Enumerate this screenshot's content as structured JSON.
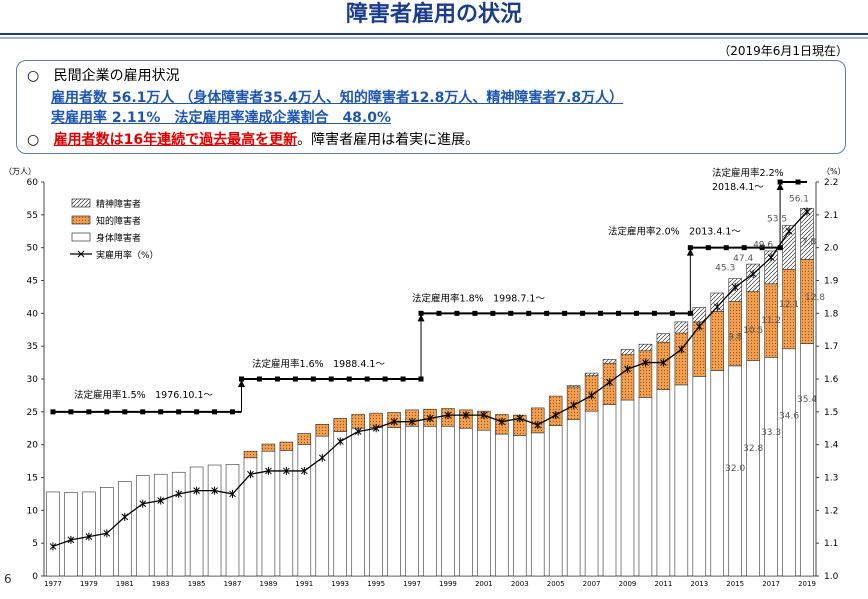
{
  "header": {
    "title": "障害者雇用の状況",
    "date_note": "（2019年6月1日現在）"
  },
  "summary": {
    "bullet": "○",
    "line1": "民間企業の雇用状況",
    "line2": "雇用者数 56.1万人 （身体障害者35.4万人、知的障害者12.8万人、精神障害者7.8万人）",
    "line3": "実雇用率 2.11%　法定雇用率達成企業割合　48.0%",
    "line4_red": "雇用者数は16年連続で過去最高を更新",
    "line4_rest": "。障害者雇用は着実に進展。"
  },
  "page_number": "6",
  "chart_data": {
    "type": "bar",
    "stacked": true,
    "ylabel_left": "（万人）",
    "ylabel_right": "（%）",
    "ylim_left": [
      0,
      60
    ],
    "ylim_right": [
      1.0,
      2.2
    ],
    "yticks_left": [
      "0",
      "5",
      "10",
      "15",
      "20",
      "25",
      "30",
      "35",
      "40",
      "45",
      "50",
      "55",
      "60"
    ],
    "yticks_right": [
      "1.0",
      "1.1",
      "1.2",
      "1.3",
      "1.4",
      "1.5",
      "1.6",
      "1.7",
      "1.8",
      "1.9",
      "2.0",
      "2.1",
      "2.2"
    ],
    "x_tick_labels": [
      "1977",
      "1979",
      "1981",
      "1983",
      "1985",
      "1987",
      "1989",
      "1991",
      "1993",
      "1995",
      "1997",
      "1999",
      "2001",
      "2003",
      "2005",
      "2007",
      "2009",
      "2011",
      "2013",
      "2015",
      "2017",
      "2019"
    ],
    "years": [
      1977,
      1978,
      1979,
      1980,
      1981,
      1982,
      1983,
      1984,
      1985,
      1986,
      1987,
      1988,
      1989,
      1990,
      1991,
      1992,
      1993,
      1994,
      1995,
      1996,
      1997,
      1998,
      1999,
      2000,
      2001,
      2002,
      2003,
      2004,
      2005,
      2006,
      2007,
      2008,
      2009,
      2010,
      2011,
      2012,
      2013,
      2014,
      2015,
      2016,
      2017,
      2018,
      2019
    ],
    "series": [
      {
        "name": "身体障害者",
        "color": "#ffffff",
        "values": [
          12.8,
          12.7,
          12.8,
          13.5,
          14.4,
          15.3,
          15.5,
          15.8,
          16.6,
          16.9,
          17.0,
          18.0,
          19.0,
          19.1,
          20.0,
          21.3,
          22.0,
          22.5,
          22.6,
          22.6,
          22.8,
          22.8,
          22.8,
          22.5,
          22.2,
          21.6,
          21.4,
          21.8,
          22.9,
          23.8,
          25.1,
          26.1,
          26.8,
          27.2,
          28.4,
          29.1,
          30.4,
          31.3,
          32.0,
          32.8,
          33.3,
          34.6,
          35.4
        ]
      },
      {
        "name": "知的障害者",
        "color": "#f0a050",
        "values": [
          0,
          0,
          0,
          0,
          0,
          0,
          0,
          0,
          0,
          0,
          0,
          1.0,
          1.1,
          1.3,
          1.7,
          1.8,
          2.0,
          2.1,
          2.2,
          2.3,
          2.5,
          2.6,
          2.7,
          2.8,
          2.9,
          3.0,
          3.1,
          3.8,
          4.5,
          5.0,
          5.4,
          6.3,
          6.9,
          7.1,
          7.2,
          7.9,
          8.3,
          9.0,
          9.8,
          10.5,
          11.2,
          12.1,
          12.8
        ]
      },
      {
        "name": "精神障害者",
        "color": "#ffffff",
        "values": [
          0,
          0,
          0,
          0,
          0,
          0,
          0,
          0,
          0,
          0,
          0,
          0,
          0,
          0,
          0,
          0,
          0,
          0,
          0,
          0,
          0,
          0,
          0,
          0,
          0,
          0,
          0,
          0,
          0,
          0.2,
          0.4,
          0.6,
          0.8,
          1.0,
          1.3,
          1.7,
          2.2,
          2.8,
          3.5,
          4.2,
          5.0,
          6.7,
          7.8
        ]
      }
    ],
    "rate_series": {
      "name": "実雇用率（%）",
      "values": [
        1.09,
        1.11,
        1.12,
        1.13,
        1.18,
        1.22,
        1.23,
        1.25,
        1.26,
        1.26,
        1.25,
        1.31,
        1.32,
        1.32,
        1.32,
        1.36,
        1.41,
        1.44,
        1.45,
        1.47,
        1.47,
        1.48,
        1.49,
        1.49,
        1.49,
        1.47,
        1.48,
        1.46,
        1.49,
        1.52,
        1.55,
        1.59,
        1.63,
        1.65,
        1.65,
        1.69,
        1.76,
        1.82,
        1.88,
        1.92,
        1.97,
        2.05,
        2.11
      ]
    },
    "statutory_rate": {
      "segments": [
        {
          "from": 1977,
          "to": 1988,
          "rate": 1.5
        },
        {
          "from": 1988,
          "to": 1998,
          "rate": 1.6
        },
        {
          "from": 1998,
          "to": 2013,
          "rate": 1.8
        },
        {
          "from": 2013,
          "to": 2018,
          "rate": 2.0
        },
        {
          "from": 2018,
          "to": 2019,
          "rate": 2.2
        }
      ],
      "labels": [
        "法定雇用率1.5%　1976.10.1～",
        "法定雇用率1.6%　1988.4.1～",
        "法定雇用率1.8%　1998.7.1～",
        "法定雇用率2.0%　2013.4.1～",
        "法定雇用率2.2%",
        "2018.4.1～"
      ]
    },
    "data_labels": [
      {
        "year": 2015,
        "text": "32.0"
      },
      {
        "year": 2016,
        "text": "32.8"
      },
      {
        "year": 2017,
        "text": "33.3"
      },
      {
        "year": 2018,
        "text": "34.6"
      },
      {
        "year": 2019,
        "text": "35.4"
      },
      {
        "year": 2015,
        "text": "9.8"
      },
      {
        "year": 2016,
        "text": "10.5"
      },
      {
        "year": 2017,
        "text": "11.2"
      },
      {
        "year": 2018,
        "text": "12.1"
      },
      {
        "year": 2019,
        "text": "12.8"
      },
      {
        "year": 2015,
        "text": "45.3"
      },
      {
        "year": 2016,
        "text": "47.4"
      },
      {
        "year": 2017,
        "text": "49.6"
      },
      {
        "year": 2018,
        "text": "53.5"
      },
      {
        "year": 2019,
        "text": "56.1"
      },
      {
        "year": 2019,
        "text": "7.8"
      }
    ],
    "legend": {
      "placement": "top-left",
      "items": [
        "精神障害者",
        "知的障害者",
        "身体障害者",
        "実雇用率（%）"
      ]
    }
  }
}
